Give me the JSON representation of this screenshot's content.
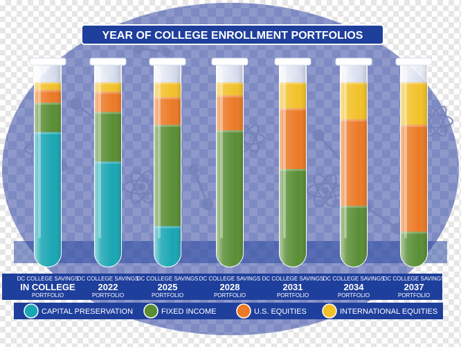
{
  "colors": {
    "capital_preservation": "#1aa6b4",
    "fixed_income": "#5a8e35",
    "us_equities": "#ec7a27",
    "international_equities": "#f2c12a",
    "navy": "#1f3f9c",
    "ellipse": "#8b96c9"
  },
  "chart_data": {
    "type": "bar",
    "stacked": true,
    "title": "YEAR OF COLLEGE ENROLLMENT PORTFOLIOS",
    "categories": [
      {
        "top": "DC COLLEGE SAVINGS",
        "main": "IN COLLEGE",
        "bottom": "PORTFOLIO"
      },
      {
        "top": "DC COLLEGE SAVINGS",
        "main": "2022",
        "bottom": "PORTFOLIO"
      },
      {
        "top": "DC COLLEGE SAVINGS",
        "main": "2025",
        "bottom": "PORTFOLIO"
      },
      {
        "top": "DC COLLEGE SAVINGS",
        "main": "2028",
        "bottom": "PORTFOLIO"
      },
      {
        "top": "DC COLLEGE SAVINGS",
        "main": "2031",
        "bottom": "PORTFOLIO"
      },
      {
        "top": "DC COLLEGE SAVINGS",
        "main": "2034",
        "bottom": "PORTFOLIO"
      },
      {
        "top": "DC COLLEGE SAVINGS",
        "main": "2037",
        "bottom": "PORTFOLIO"
      }
    ],
    "series": [
      {
        "name": "CAPITAL PRESERVATION",
        "key": "capital_preservation",
        "values": [
          73,
          57,
          22,
          0,
          0,
          0,
          0
        ]
      },
      {
        "name": "FIXED INCOME",
        "key": "fixed_income",
        "values": [
          16,
          27,
          55,
          74,
          53,
          33,
          19
        ]
      },
      {
        "name": "U.S. EQUITIES",
        "key": "us_equities",
        "values": [
          7,
          11,
          15,
          19,
          33,
          47,
          58
        ]
      },
      {
        "name": "INTERNATIONAL EQUITIES",
        "key": "international_equities",
        "values": [
          4,
          5,
          8,
          7,
          14,
          20,
          23
        ]
      }
    ],
    "ylim": [
      0,
      100
    ],
    "legend_position": "bottom"
  }
}
